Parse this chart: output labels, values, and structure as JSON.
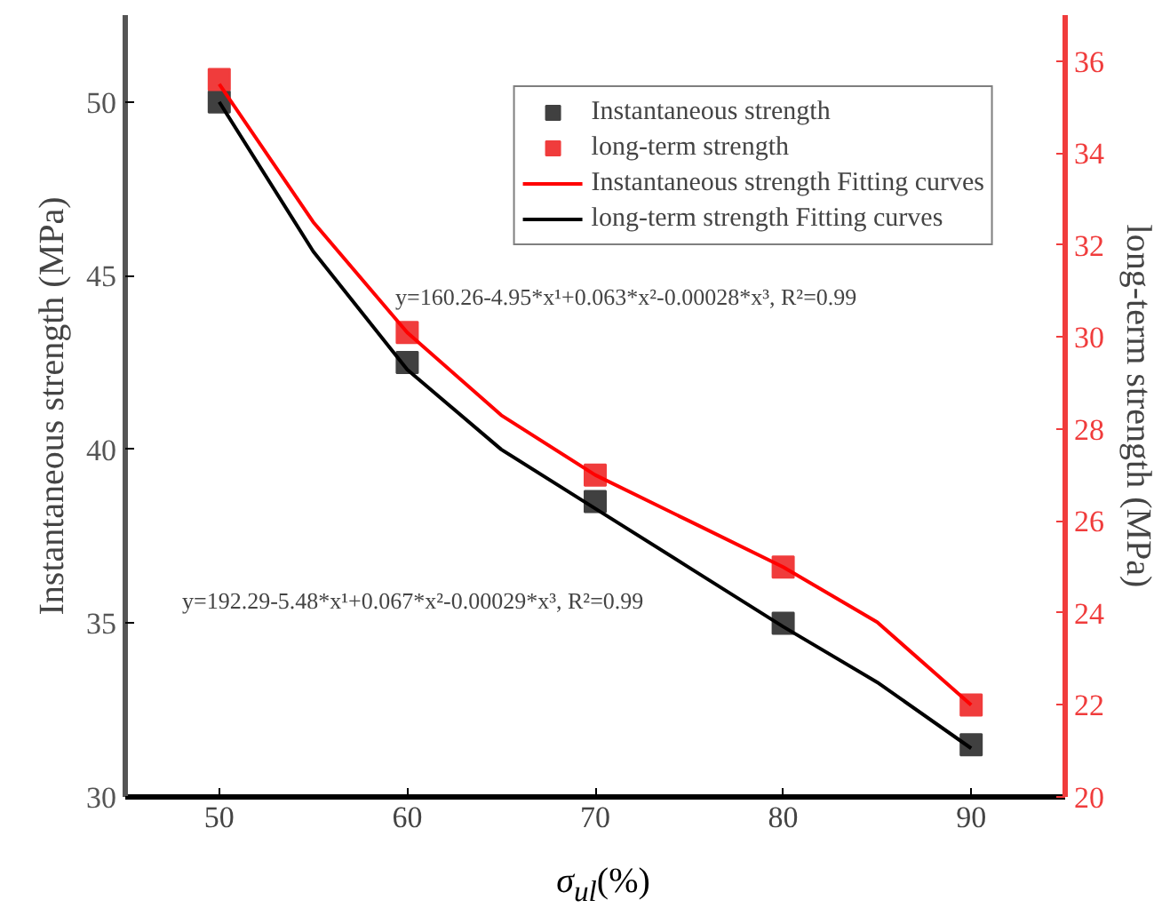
{
  "chart_data": {
    "type": "scatter",
    "xlabel": "σ$_{ul}$(%)",
    "ylabel": "Instantaneous strength (MPa)",
    "y2label": "long-term strength (MPa)",
    "x": [
      50,
      60,
      70,
      80,
      90
    ],
    "xlim": [
      45,
      95
    ],
    "xticks": [
      50,
      60,
      70,
      80,
      90
    ],
    "ylim": [
      30,
      52.5
    ],
    "yticks": [
      30,
      35,
      40,
      45,
      50
    ],
    "y2lim": [
      20,
      37
    ],
    "y2ticks": [
      20,
      22,
      24,
      26,
      28,
      30,
      32,
      34,
      36
    ],
    "grid": false,
    "legend": "top right",
    "marker": "square",
    "series": [
      {
        "name": "Instantaneous strength",
        "axis": "y",
        "color": "#404040",
        "values": [
          50.0,
          42.5,
          38.5,
          35.0,
          31.5
        ]
      },
      {
        "name": "long-term strength",
        "axis": "y2",
        "color": "#f03c3c",
        "values": [
          35.6,
          30.1,
          27.0,
          25.0,
          22.0
        ]
      },
      {
        "name": "Instantaneous strength Fitting curves",
        "type": "line",
        "axis": "y2",
        "color": "#ff0000",
        "line_style": "solid",
        "marker": "none",
        "x": [
          50,
          55,
          60,
          65,
          70,
          75,
          80,
          85,
          90
        ],
        "values": [
          35.5,
          32.5,
          30.1,
          28.3,
          27.0,
          26.0,
          25.0,
          23.8,
          22.0
        ]
      },
      {
        "name": "long-term strength Fitting curves",
        "type": "line",
        "axis": "y",
        "color": "#000000",
        "line_style": "solid",
        "marker": "none",
        "x": [
          50,
          55,
          60,
          65,
          70,
          75,
          80,
          85,
          90
        ],
        "values": [
          50.0,
          45.7,
          42.3,
          40.0,
          38.3,
          36.6,
          34.9,
          33.3,
          31.4
        ]
      }
    ],
    "annotations": [
      "y=160.26-4.95*x¹+0.063*x²-0.00028*x³, R²=0.99",
      "y=192.29-5.48*x¹+0.067*x²-0.00029*x³, R²=0.99"
    ]
  }
}
